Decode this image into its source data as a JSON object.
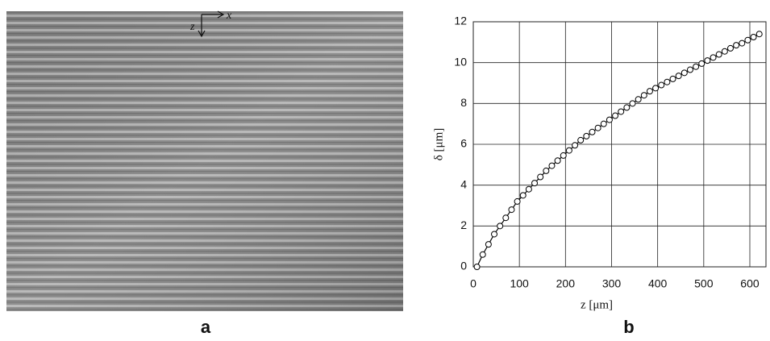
{
  "figure": {
    "panel_labels": [
      "a",
      "b"
    ],
    "image_axes": [
      "z",
      "x"
    ]
  },
  "chart_data": {
    "type": "line",
    "x_label": "z [μm]",
    "y_label": "δ [μm]",
    "x": [
      8,
      20.5,
      33,
      45.5,
      58,
      70.5,
      83,
      95.5,
      108,
      120.5,
      133,
      145.5,
      158,
      170.5,
      183,
      195.5,
      208,
      220.5,
      233,
      245.5,
      258,
      270.5,
      283,
      295.5,
      308,
      320.5,
      333,
      345.5,
      358,
      370.5,
      383,
      395.5,
      408,
      420.5,
      433,
      445.5,
      458,
      470.5,
      483,
      495.5,
      508,
      520.5,
      533,
      545.5,
      558,
      570.5,
      583,
      595.5,
      608,
      620.5
    ],
    "values": [
      0,
      0.6,
      1.1,
      1.6,
      2.0,
      2.4,
      2.8,
      3.2,
      3.5,
      3.8,
      4.1,
      4.4,
      4.7,
      4.95,
      5.2,
      5.45,
      5.7,
      5.95,
      6.2,
      6.4,
      6.6,
      6.8,
      7.0,
      7.2,
      7.4,
      7.6,
      7.8,
      8.0,
      8.2,
      8.4,
      8.6,
      8.75,
      8.9,
      9.05,
      9.2,
      9.35,
      9.5,
      9.65,
      9.8,
      9.95,
      10.1,
      10.25,
      10.4,
      10.55,
      10.7,
      10.85,
      10.95,
      11.1,
      11.25,
      11.4
    ],
    "color": "#000000",
    "xlim": [
      0,
      635
    ],
    "ylim": [
      0,
      12
    ],
    "xticks": [
      0,
      100,
      200,
      300,
      400,
      500,
      600
    ],
    "yticks": [
      0,
      2,
      4,
      6,
      8,
      10,
      12
    ],
    "grid": true
  }
}
